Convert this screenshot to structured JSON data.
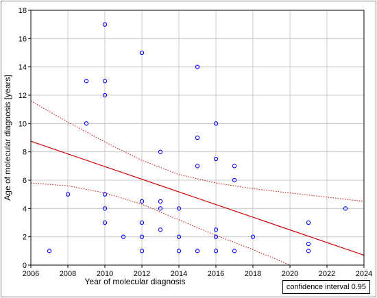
{
  "chart_data": {
    "type": "scatter",
    "title": "",
    "xlabel": "Year of molecular diagnosis",
    "ylabel": "Age of molecular diagnosis [years]",
    "xlim": [
      2006,
      2024
    ],
    "ylim": [
      0,
      18
    ],
    "xticks": [
      2006,
      2008,
      2010,
      2012,
      2014,
      2016,
      2018,
      2020,
      2022,
      2024
    ],
    "yticks": [
      0,
      2,
      4,
      6,
      8,
      10,
      12,
      14,
      16,
      18
    ],
    "grid": true,
    "legend": "bottom-right",
    "legend_label": "confidence interval 0.95",
    "points": [
      {
        "x": 2007,
        "y": 1
      },
      {
        "x": 2008,
        "y": 5
      },
      {
        "x": 2009,
        "y": 13
      },
      {
        "x": 2009,
        "y": 10
      },
      {
        "x": 2010,
        "y": 17
      },
      {
        "x": 2010,
        "y": 13
      },
      {
        "x": 2010,
        "y": 12
      },
      {
        "x": 2010,
        "y": 5
      },
      {
        "x": 2010,
        "y": 4
      },
      {
        "x": 2010,
        "y": 3
      },
      {
        "x": 2011,
        "y": 2
      },
      {
        "x": 2012,
        "y": 15
      },
      {
        "x": 2012,
        "y": 4.5
      },
      {
        "x": 2012,
        "y": 3
      },
      {
        "x": 2012,
        "y": 2
      },
      {
        "x": 2012,
        "y": 1
      },
      {
        "x": 2013,
        "y": 8
      },
      {
        "x": 2013,
        "y": 4.5
      },
      {
        "x": 2013,
        "y": 4
      },
      {
        "x": 2013,
        "y": 2.5
      },
      {
        "x": 2014,
        "y": 4
      },
      {
        "x": 2014,
        "y": 2
      },
      {
        "x": 2014,
        "y": 1
      },
      {
        "x": 2015,
        "y": 14
      },
      {
        "x": 2015,
        "y": 9
      },
      {
        "x": 2015,
        "y": 7
      },
      {
        "x": 2015,
        "y": 1
      },
      {
        "x": 2016,
        "y": 10
      },
      {
        "x": 2016,
        "y": 7.5
      },
      {
        "x": 2016,
        "y": 2.5
      },
      {
        "x": 2016,
        "y": 2
      },
      {
        "x": 2016,
        "y": 1
      },
      {
        "x": 2017,
        "y": 7
      },
      {
        "x": 2017,
        "y": 6
      },
      {
        "x": 2017,
        "y": 1
      },
      {
        "x": 2018,
        "y": 2
      },
      {
        "x": 2021,
        "y": 3
      },
      {
        "x": 2021,
        "y": 1.5
      },
      {
        "x": 2021,
        "y": 1
      },
      {
        "x": 2023,
        "y": 4
      }
    ],
    "regression_line": {
      "x": [
        2006,
        2024
      ],
      "y": [
        8.75,
        0.7
      ]
    },
    "confidence_upper": {
      "x": [
        2006,
        2008,
        2010,
        2012,
        2014,
        2016,
        2018,
        2020,
        2022,
        2024
      ],
      "y": [
        11.6,
        10.1,
        8.7,
        7.4,
        6.4,
        5.8,
        5.4,
        5.1,
        4.8,
        4.5
      ]
    },
    "confidence_lower": {
      "x": [
        2006,
        2008,
        2010,
        2012,
        2014,
        2016,
        2018,
        2019,
        2020
      ],
      "y": [
        5.8,
        5.6,
        5.1,
        4.3,
        3.2,
        2.1,
        1.1,
        0.55,
        0
      ]
    },
    "colors": {
      "points": "#0000ff",
      "regression": "#cc0000",
      "grid": "#c8c8c8"
    }
  }
}
